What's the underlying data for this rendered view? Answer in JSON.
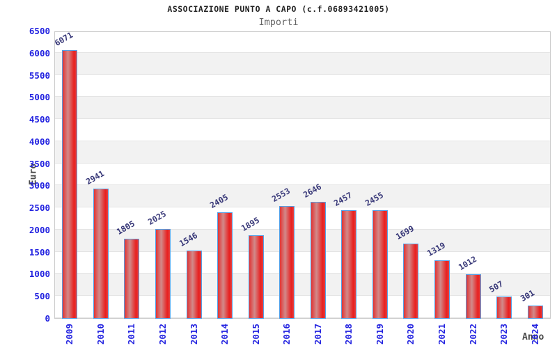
{
  "header": {
    "title": "ASSOCIAZIONE PUNTO A CAPO (c.f.06893421005)",
    "subtitle": "Importi"
  },
  "chart_data": {
    "type": "bar",
    "title": "ASSOCIAZIONE PUNTO A CAPO (c.f.06893421005)",
    "subtitle": "Importi",
    "xlabel": "Anno",
    "ylabel": "Euro",
    "categories": [
      "2009",
      "2010",
      "2011",
      "2012",
      "2013",
      "2014",
      "2015",
      "2016",
      "2017",
      "2018",
      "2019",
      "2020",
      "2021",
      "2022",
      "2023",
      "2024"
    ],
    "values": [
      6071,
      2941,
      1805,
      2025,
      1546,
      2405,
      1895,
      2553,
      2646,
      2457,
      2455,
      1699,
      1319,
      1012,
      507,
      301
    ],
    "ylim": [
      0,
      6500
    ],
    "ytick_step": 500,
    "grid": true,
    "legend": "none",
    "colors": {
      "bar_fill": "#e81f1f",
      "bar_fill_light": "#d28a8a",
      "bar_border": "#55a0e6",
      "tick_label": "#2222e0",
      "value_label": "#363677",
      "axis_title": "#4a4a4a",
      "band_gray": "#f2f2f2",
      "plot_border": "#cccccc"
    }
  }
}
